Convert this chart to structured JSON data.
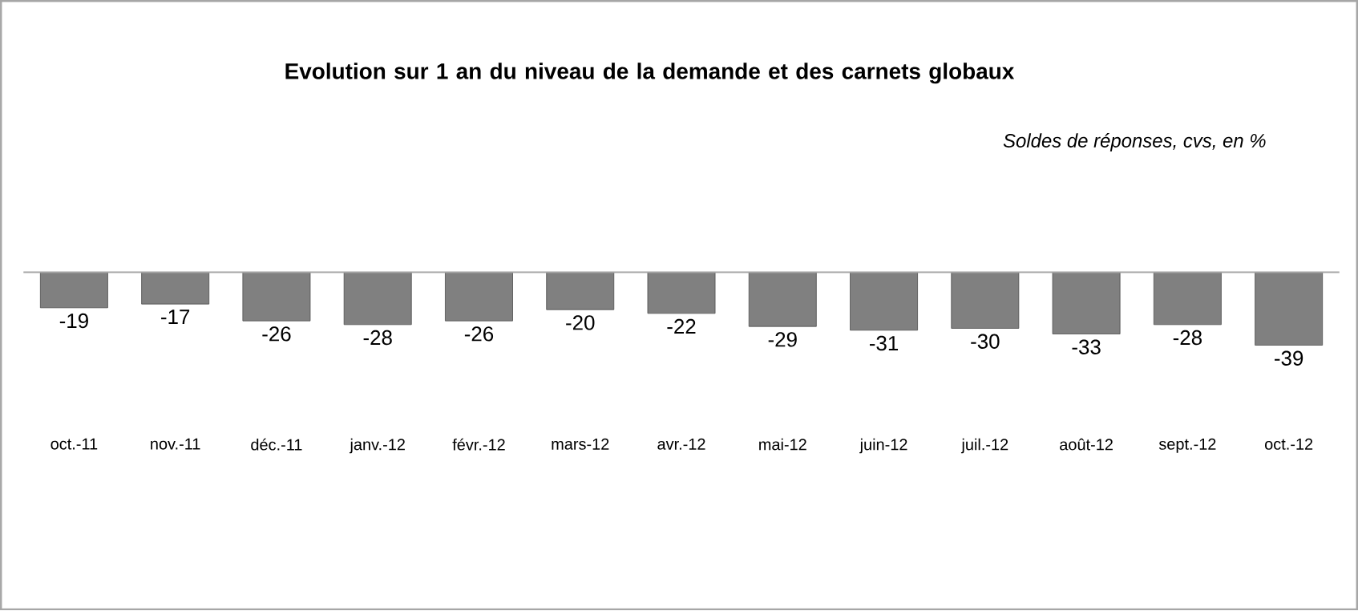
{
  "chart_data": {
    "type": "bar",
    "title": "Evolution sur 1 an du niveau de la demande et des carnets globaux",
    "subtitle": "Soldes de réponses, cvs, en %",
    "categories": [
      "oct.-11",
      "nov.-11",
      "déc.-11",
      "janv.-12",
      "févr.-12",
      "mars-12",
      "avr.-12",
      "mai-12",
      "juin-12",
      "juil.-12",
      "août-12",
      "sept.-12",
      "oct.-12"
    ],
    "values": [
      -19,
      -17,
      -26,
      -28,
      -26,
      -20,
      -22,
      -29,
      -31,
      -30,
      -33,
      -28,
      -39
    ],
    "color": "#808080",
    "data_labels": true
  }
}
